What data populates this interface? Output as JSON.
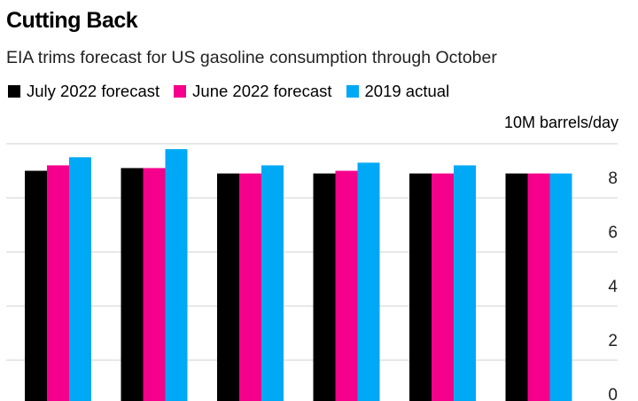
{
  "chart_data": {
    "type": "bar",
    "title": "Cutting Back",
    "subtitle": "EIA trims forecast for US gasoline consumption through October",
    "ylabel": "10M barrels/day",
    "ylim": [
      0,
      10
    ],
    "yticks": [
      "0",
      "2",
      "4",
      "6",
      "8"
    ],
    "grid": true,
    "legend_position": "top-left",
    "series": [
      {
        "name": "July 2022 forecast",
        "color": "#000000",
        "values": [
          9.0,
          9.1,
          8.9,
          8.9,
          8.9,
          8.9
        ]
      },
      {
        "name": "June 2022 forecast",
        "color": "#f5008c",
        "values": [
          9.2,
          9.1,
          8.9,
          9.0,
          8.9,
          8.9
        ]
      },
      {
        "name": "2019 actual",
        "color": "#00a9f5",
        "values": [
          9.5,
          9.8,
          9.2,
          9.3,
          9.2,
          8.9
        ]
      }
    ]
  }
}
